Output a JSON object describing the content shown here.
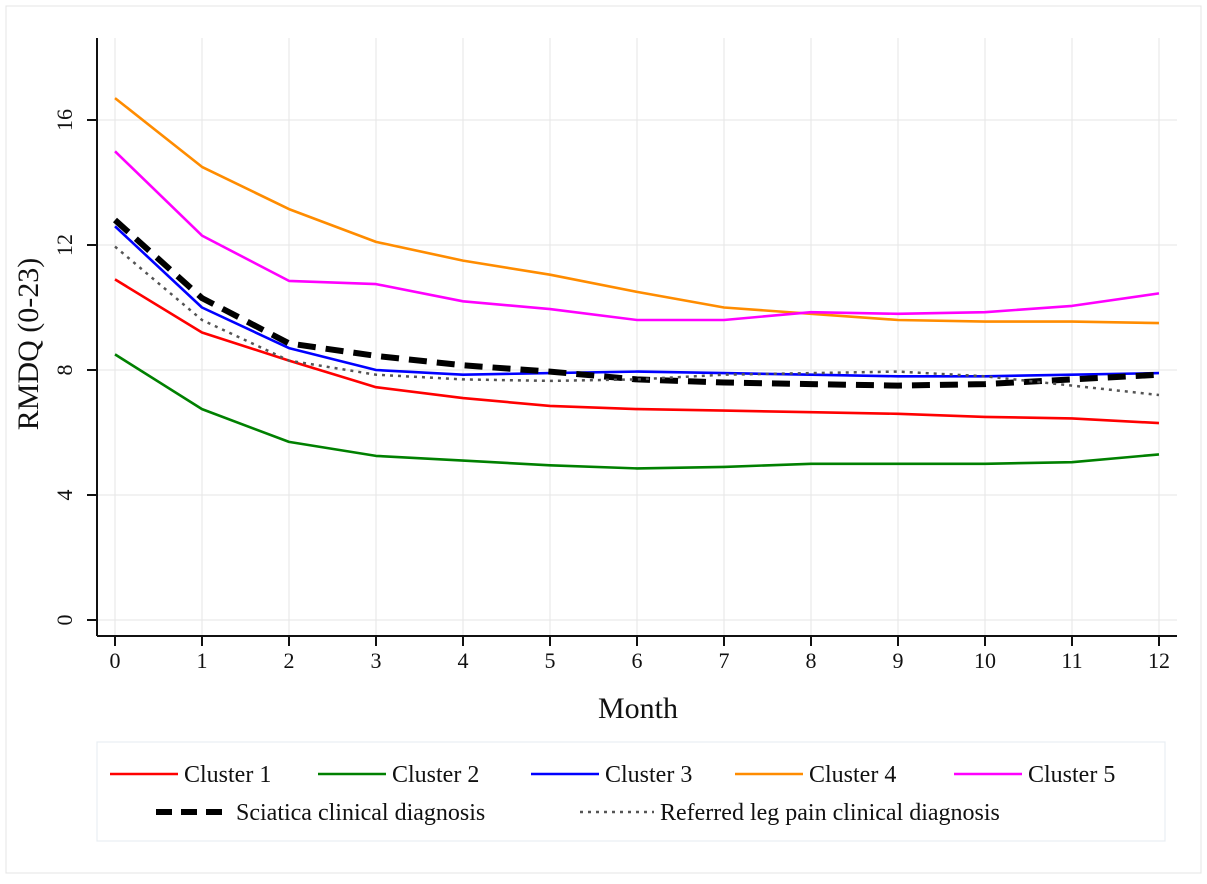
{
  "chart_data": {
    "type": "line",
    "title": "",
    "xlabel": "Month",
    "ylabel": "RMDQ (0-23)",
    "xlim": [
      0,
      12
    ],
    "ylim": [
      -0.5,
      18.5
    ],
    "x_ticks": [
      "0",
      "1",
      "2",
      "3",
      "4",
      "5",
      "6",
      "7",
      "8",
      "9",
      "10",
      "11",
      "12"
    ],
    "y_ticks": [
      "0",
      "4",
      "8",
      "12",
      "16"
    ],
    "grid": true,
    "legend_position": "bottom",
    "series": [
      {
        "name": "Cluster 1",
        "color": "#ff0000",
        "style": "solid",
        "points": [
          [
            0,
            10.9
          ],
          [
            1,
            9.2
          ],
          [
            2,
            8.3
          ],
          [
            3,
            7.45
          ],
          [
            4,
            7.1
          ],
          [
            5,
            6.85
          ],
          [
            6,
            6.75
          ],
          [
            7,
            6.7
          ],
          [
            8,
            6.65
          ],
          [
            9,
            6.6
          ],
          [
            10,
            6.5
          ],
          [
            11,
            6.45
          ],
          [
            12,
            6.3
          ]
        ]
      },
      {
        "name": "Cluster 2",
        "color": "#008000",
        "style": "solid",
        "points": [
          [
            0,
            8.5
          ],
          [
            1,
            6.75
          ],
          [
            2,
            5.7
          ],
          [
            3,
            5.25
          ],
          [
            4,
            5.1
          ],
          [
            5,
            4.95
          ],
          [
            6,
            4.85
          ],
          [
            7,
            4.9
          ],
          [
            8,
            5.0
          ],
          [
            9,
            5.0
          ],
          [
            10,
            5.0
          ],
          [
            11,
            5.05
          ],
          [
            12,
            5.3
          ]
        ]
      },
      {
        "name": "Cluster 3",
        "color": "#0000ff",
        "style": "solid",
        "points": [
          [
            0,
            12.6
          ],
          [
            1,
            10.0
          ],
          [
            2,
            8.7
          ],
          [
            3,
            8.0
          ],
          [
            4,
            7.85
          ],
          [
            5,
            7.9
          ],
          [
            6,
            7.95
          ],
          [
            7,
            7.9
          ],
          [
            8,
            7.85
          ],
          [
            9,
            7.8
          ],
          [
            10,
            7.8
          ],
          [
            11,
            7.85
          ],
          [
            12,
            7.9
          ]
        ]
      },
      {
        "name": "Cluster 4",
        "color": "#ff8c00",
        "style": "solid",
        "points": [
          [
            0,
            16.7
          ],
          [
            1,
            14.5
          ],
          [
            2,
            13.15
          ],
          [
            3,
            12.1
          ],
          [
            4,
            11.5
          ],
          [
            5,
            11.05
          ],
          [
            6,
            10.5
          ],
          [
            7,
            10.0
          ],
          [
            8,
            9.8
          ],
          [
            9,
            9.6
          ],
          [
            10,
            9.55
          ],
          [
            11,
            9.55
          ],
          [
            12,
            9.5
          ]
        ]
      },
      {
        "name": "Cluster 5",
        "color": "#ff00ff",
        "style": "solid",
        "points": [
          [
            0,
            15.0
          ],
          [
            1,
            12.3
          ],
          [
            2,
            10.85
          ],
          [
            3,
            10.75
          ],
          [
            4,
            10.2
          ],
          [
            5,
            9.95
          ],
          [
            6,
            9.6
          ],
          [
            7,
            9.6
          ],
          [
            8,
            9.85
          ],
          [
            9,
            9.8
          ],
          [
            10,
            9.85
          ],
          [
            11,
            10.05
          ],
          [
            12,
            10.45
          ]
        ]
      },
      {
        "name": "Sciatica clinical diagnosis",
        "color": "#000000",
        "style": "dashed",
        "points": [
          [
            0,
            12.8
          ],
          [
            1,
            10.3
          ],
          [
            2,
            8.85
          ],
          [
            3,
            8.45
          ],
          [
            4,
            8.15
          ],
          [
            5,
            7.95
          ],
          [
            6,
            7.7
          ],
          [
            7,
            7.6
          ],
          [
            8,
            7.55
          ],
          [
            9,
            7.5
          ],
          [
            10,
            7.55
          ],
          [
            11,
            7.7
          ],
          [
            12,
            7.85
          ]
        ]
      },
      {
        "name": "Referred leg pain clinical diagnosis",
        "color": "#555555",
        "style": "dotted",
        "points": [
          [
            0,
            11.95
          ],
          [
            1,
            9.6
          ],
          [
            2,
            8.3
          ],
          [
            3,
            7.85
          ],
          [
            4,
            7.7
          ],
          [
            5,
            7.65
          ],
          [
            6,
            7.7
          ],
          [
            7,
            7.85
          ],
          [
            8,
            7.9
          ],
          [
            9,
            7.95
          ],
          [
            10,
            7.8
          ],
          [
            11,
            7.5
          ],
          [
            12,
            7.2
          ]
        ]
      }
    ]
  }
}
